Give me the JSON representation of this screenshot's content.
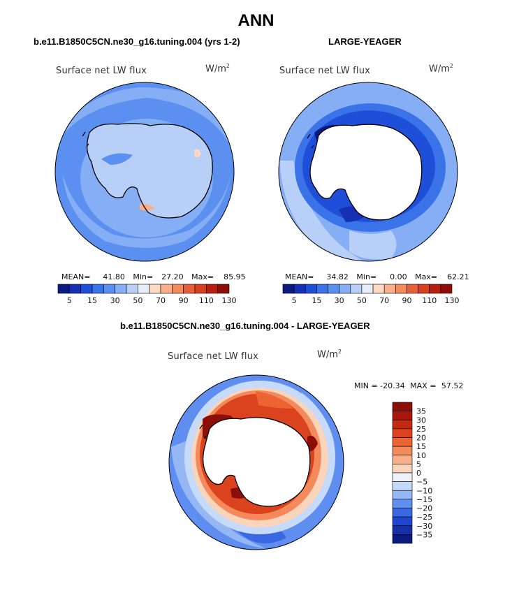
{
  "page": {
    "title": "ANN",
    "left_header": "b.e11.B1850C5CN.ne30_g16.tuning.004 (yrs 1-2)",
    "right_header": "LARGE-YEAGER",
    "diff_header": "b.e11.B1850C5CN.ne30_g16.tuning.004 - LARGE-YEAGER"
  },
  "chart_data": [
    {
      "type": "heatmap",
      "title": "Surface net LW flux",
      "units": "W/m2",
      "projection": "south polar stereographic",
      "stats": {
        "mean_label": "MEAN=",
        "mean": "41.80",
        "min_label": "Min=",
        "min": "27.20",
        "max_label": "Max=",
        "max": "85.95"
      },
      "colorbar": {
        "tick_labels": [
          "5",
          "15",
          "30",
          "50",
          "70",
          "90",
          "110",
          "130"
        ],
        "colors": [
          "#0a1a80",
          "#1530b5",
          "#1f4fd8",
          "#3a72e8",
          "#5b8ff0",
          "#86aef4",
          "#b8cff8",
          "#e8eef8",
          "#fbd9c2",
          "#f7b08a",
          "#f28c5c",
          "#e8603a",
          "#d6401f",
          "#b52010",
          "#8c0e08"
        ]
      }
    },
    {
      "type": "heatmap",
      "title": "Surface net LW flux",
      "units": "W/m2",
      "projection": "south polar stereographic",
      "stats": {
        "mean_label": "MEAN=",
        "mean": "34.82",
        "min_label": "Min=",
        "min": "0.00",
        "max_label": "Max=",
        "max": "62.21"
      },
      "colorbar": {
        "tick_labels": [
          "5",
          "15",
          "30",
          "50",
          "70",
          "90",
          "110",
          "130"
        ],
        "colors": [
          "#0a1a80",
          "#1530b5",
          "#1f4fd8",
          "#3a72e8",
          "#5b8ff0",
          "#86aef4",
          "#b8cff8",
          "#e8eef8",
          "#fbd9c2",
          "#f7b08a",
          "#f28c5c",
          "#e8603a",
          "#d6401f",
          "#b52010",
          "#8c0e08"
        ]
      }
    },
    {
      "type": "heatmap",
      "title": "Surface net LW flux",
      "units": "W/m2",
      "projection": "south polar stereographic",
      "stats": {
        "min_label": "MIN =",
        "min": "-20.34",
        "max_label": "MAX =",
        "max": "57.52"
      },
      "colorbar": {
        "tick_labels": [
          "35",
          "30",
          "25",
          "20",
          "15",
          "10",
          "5",
          "0",
          "−5",
          "−10",
          "−15",
          "−20",
          "−25",
          "−30",
          "−35"
        ],
        "colors": [
          "#8c0e08",
          "#a8160c",
          "#c42a12",
          "#db421e",
          "#ee6332",
          "#f48a5c",
          "#f7b08a",
          "#fbd4bc",
          "#eef2f8",
          "#c6dafa",
          "#95b8f5",
          "#5f8ef0",
          "#3a68e2",
          "#1f46cc",
          "#1530a8",
          "#0a1a80"
        ]
      }
    }
  ]
}
